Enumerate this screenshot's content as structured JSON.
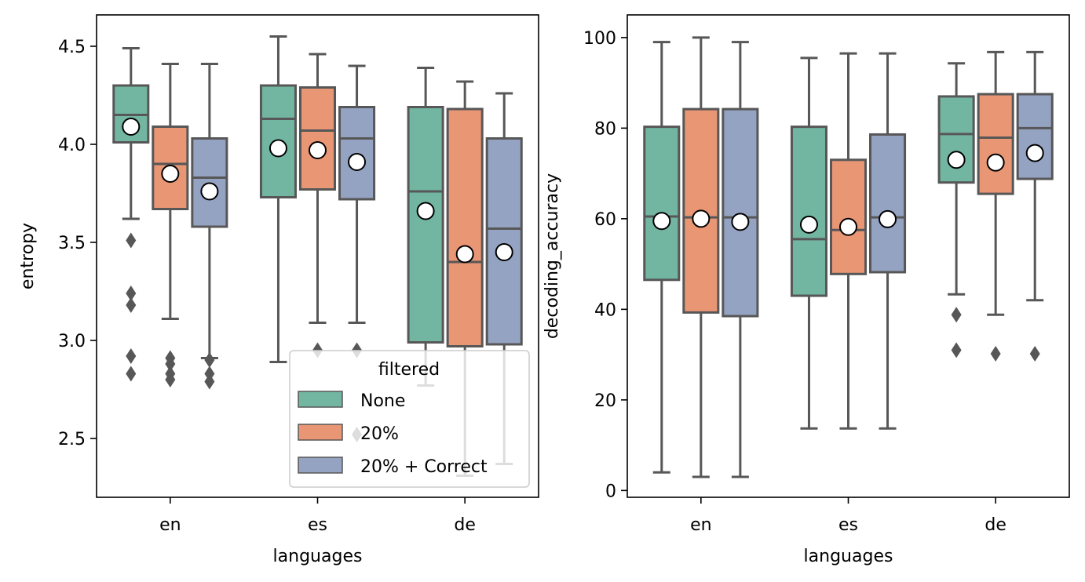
{
  "chart_data": [
    {
      "type": "box",
      "xlabel": "languages",
      "ylabel": "entropy",
      "categories": [
        "en",
        "es",
        "de"
      ],
      "ylim": [
        2.2,
        4.66
      ],
      "yticks": [
        2.5,
        3.0,
        3.5,
        4.0,
        4.5
      ],
      "ytick_labels": [
        "2.5",
        "3.0",
        "3.5",
        "4.0",
        "4.5"
      ],
      "legend": {
        "title": "filtered",
        "placement": "lower-right",
        "entries": [
          "None",
          "20%",
          "20% + Correct"
        ]
      },
      "series": [
        {
          "name": "None",
          "color": "#72b6a1",
          "boxes": [
            {
              "category": "en",
              "whisker_low": 3.62,
              "q1": 4.01,
              "median": 4.15,
              "q3": 4.3,
              "whisker_high": 4.49,
              "mean": 4.09,
              "outliers": [
                3.51,
                3.24,
                3.18,
                2.92,
                2.83
              ]
            },
            {
              "category": "es",
              "whisker_low": 2.89,
              "q1": 3.73,
              "median": 4.13,
              "q3": 4.3,
              "whisker_high": 4.55,
              "mean": 3.98,
              "outliers": []
            },
            {
              "category": "de",
              "whisker_low": 2.77,
              "q1": 2.99,
              "median": 3.76,
              "q3": 4.19,
              "whisker_high": 4.39,
              "mean": 3.66,
              "outliers": []
            }
          ]
        },
        {
          "name": "20%",
          "color": "#e99675",
          "boxes": [
            {
              "category": "en",
              "whisker_low": 3.11,
              "q1": 3.67,
              "median": 3.9,
              "q3": 4.09,
              "whisker_high": 4.41,
              "mean": 3.85,
              "outliers": [
                2.91,
                2.88,
                2.83,
                2.8
              ]
            },
            {
              "category": "es",
              "whisker_low": 3.09,
              "q1": 3.77,
              "median": 4.07,
              "q3": 4.29,
              "whisker_high": 4.46,
              "mean": 3.97,
              "outliers": [
                2.95
              ]
            },
            {
              "category": "de",
              "whisker_low": 2.31,
              "q1": 2.97,
              "median": 3.4,
              "q3": 4.18,
              "whisker_high": 4.32,
              "mean": 3.44,
              "outliers": []
            }
          ]
        },
        {
          "name": "20% + Correct",
          "color": "#95a3c3",
          "boxes": [
            {
              "category": "en",
              "whisker_low": 2.91,
              "q1": 3.58,
              "median": 3.83,
              "q3": 4.03,
              "whisker_high": 4.41,
              "mean": 3.76,
              "outliers": [
                2.9,
                2.83,
                2.79
              ]
            },
            {
              "category": "es",
              "whisker_low": 3.09,
              "q1": 3.72,
              "median": 4.03,
              "q3": 4.19,
              "whisker_high": 4.4,
              "mean": 3.91,
              "outliers": [
                2.95,
                2.52
              ]
            },
            {
              "category": "de",
              "whisker_low": 2.37,
              "q1": 2.98,
              "median": 3.57,
              "q3": 4.03,
              "whisker_high": 4.26,
              "mean": 3.45,
              "outliers": []
            }
          ]
        }
      ]
    },
    {
      "type": "box",
      "xlabel": "languages",
      "ylabel": "decoding_accuracy",
      "categories": [
        "en",
        "es",
        "de"
      ],
      "ylim": [
        -1.5,
        105
      ],
      "yticks": [
        0,
        20,
        40,
        60,
        80,
        100
      ],
      "ytick_labels": [
        "0",
        "20",
        "40",
        "60",
        "80",
        "100"
      ],
      "series": [
        {
          "name": "None",
          "color": "#72b6a1",
          "boxes": [
            {
              "category": "en",
              "whisker_low": 4,
              "q1": 46.5,
              "median": 60.5,
              "q3": 80.3,
              "whisker_high": 99,
              "mean": 59.5,
              "outliers": []
            },
            {
              "category": "es",
              "whisker_low": 13.7,
              "q1": 43,
              "median": 55.5,
              "q3": 80.3,
              "whisker_high": 95.5,
              "mean": 58.7,
              "outliers": []
            },
            {
              "category": "de",
              "whisker_low": 43.3,
              "q1": 68,
              "median": 78.7,
              "q3": 87,
              "whisker_high": 94.3,
              "mean": 73,
              "outliers": [
                38.8,
                31
              ]
            }
          ]
        },
        {
          "name": "20%",
          "color": "#e99675",
          "boxes": [
            {
              "category": "en",
              "whisker_low": 3,
              "q1": 39.3,
              "median": 60.3,
              "q3": 84.2,
              "whisker_high": 100,
              "mean": 60,
              "outliers": []
            },
            {
              "category": "es",
              "whisker_low": 13.7,
              "q1": 47.8,
              "median": 57.5,
              "q3": 73,
              "whisker_high": 96.5,
              "mean": 58.2,
              "outliers": []
            },
            {
              "category": "de",
              "whisker_low": 38.8,
              "q1": 65.5,
              "median": 77.9,
              "q3": 87.5,
              "whisker_high": 96.8,
              "mean": 72.4,
              "outliers": [
                30.2
              ]
            }
          ]
        },
        {
          "name": "20% + Correct",
          "color": "#95a3c3",
          "boxes": [
            {
              "category": "en",
              "whisker_low": 3,
              "q1": 38.5,
              "median": 60.3,
              "q3": 84.2,
              "whisker_high": 99,
              "mean": 59.3,
              "outliers": []
            },
            {
              "category": "es",
              "whisker_low": 13.7,
              "q1": 48.2,
              "median": 60.3,
              "q3": 78.6,
              "whisker_high": 96.5,
              "mean": 59.9,
              "outliers": []
            },
            {
              "category": "de",
              "whisker_low": 42,
              "q1": 68.8,
              "median": 80,
              "q3": 87.5,
              "whisker_high": 96.8,
              "mean": 74.5,
              "outliers": [
                30.2
              ]
            }
          ]
        }
      ]
    }
  ]
}
